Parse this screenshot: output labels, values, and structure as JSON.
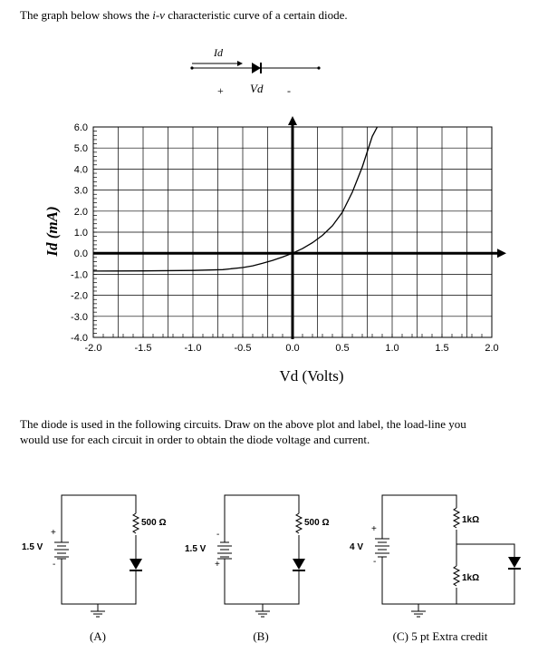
{
  "intro": {
    "before": "The graph below shows the ",
    "emph": "i-v",
    "after": " characteristic curve of a certain diode."
  },
  "diode_symbol": {
    "current_label": "Id",
    "plus": "+",
    "voltage_label": "Vd",
    "minus": "-"
  },
  "chart_data": {
    "type": "line",
    "title": "",
    "xlabel": "Vd (Volts)",
    "ylabel": "Id (mA)",
    "xlim": [
      -2.0,
      2.0
    ],
    "ylim": [
      -4.0,
      6.0
    ],
    "x_ticks": [
      "-2.0",
      "-1.5",
      "-1.0",
      "-0.5",
      "0.0",
      "0.5",
      "1.0",
      "1.5",
      "2.0"
    ],
    "y_ticks": [
      "6.0",
      "5.0",
      "4.0",
      "3.0",
      "2.0",
      "1.0",
      "0.0",
      "-1.0",
      "-2.0",
      "-3.0",
      "-4.0"
    ],
    "grid": true,
    "series": [
      {
        "x": [
          -2.0,
          -1.5,
          -1.0,
          -0.7,
          -0.5,
          -0.4,
          -0.3,
          -0.2,
          -0.1,
          0.0,
          0.1,
          0.2,
          0.3,
          0.4,
          0.5,
          0.6,
          0.7,
          0.8,
          0.85
        ],
        "y": [
          -0.85,
          -0.84,
          -0.82,
          -0.78,
          -0.68,
          -0.6,
          -0.48,
          -0.34,
          -0.18,
          0.0,
          0.22,
          0.5,
          0.85,
          1.3,
          1.95,
          2.9,
          4.1,
          5.55,
          6.0
        ]
      }
    ]
  },
  "question": "The diode is used in the following circuits. Draw on the above plot and label, the load-line you would use for each circuit in order to obtain the diode voltage and current.",
  "circuits": [
    {
      "label": "(A)",
      "source": "1.5 V",
      "resistor": "500 Ω",
      "src_top": "+",
      "src_bottom": "-"
    },
    {
      "label": "(B)",
      "source": "1.5 V",
      "resistor": "500 Ω",
      "src_top": "-",
      "src_bottom": "+"
    },
    {
      "label": "(C) 5 pt Extra credit",
      "source": "4 V",
      "resistor1": "1kΩ",
      "resistor2": "1kΩ",
      "src_top": "+",
      "src_bottom": "-"
    }
  ]
}
